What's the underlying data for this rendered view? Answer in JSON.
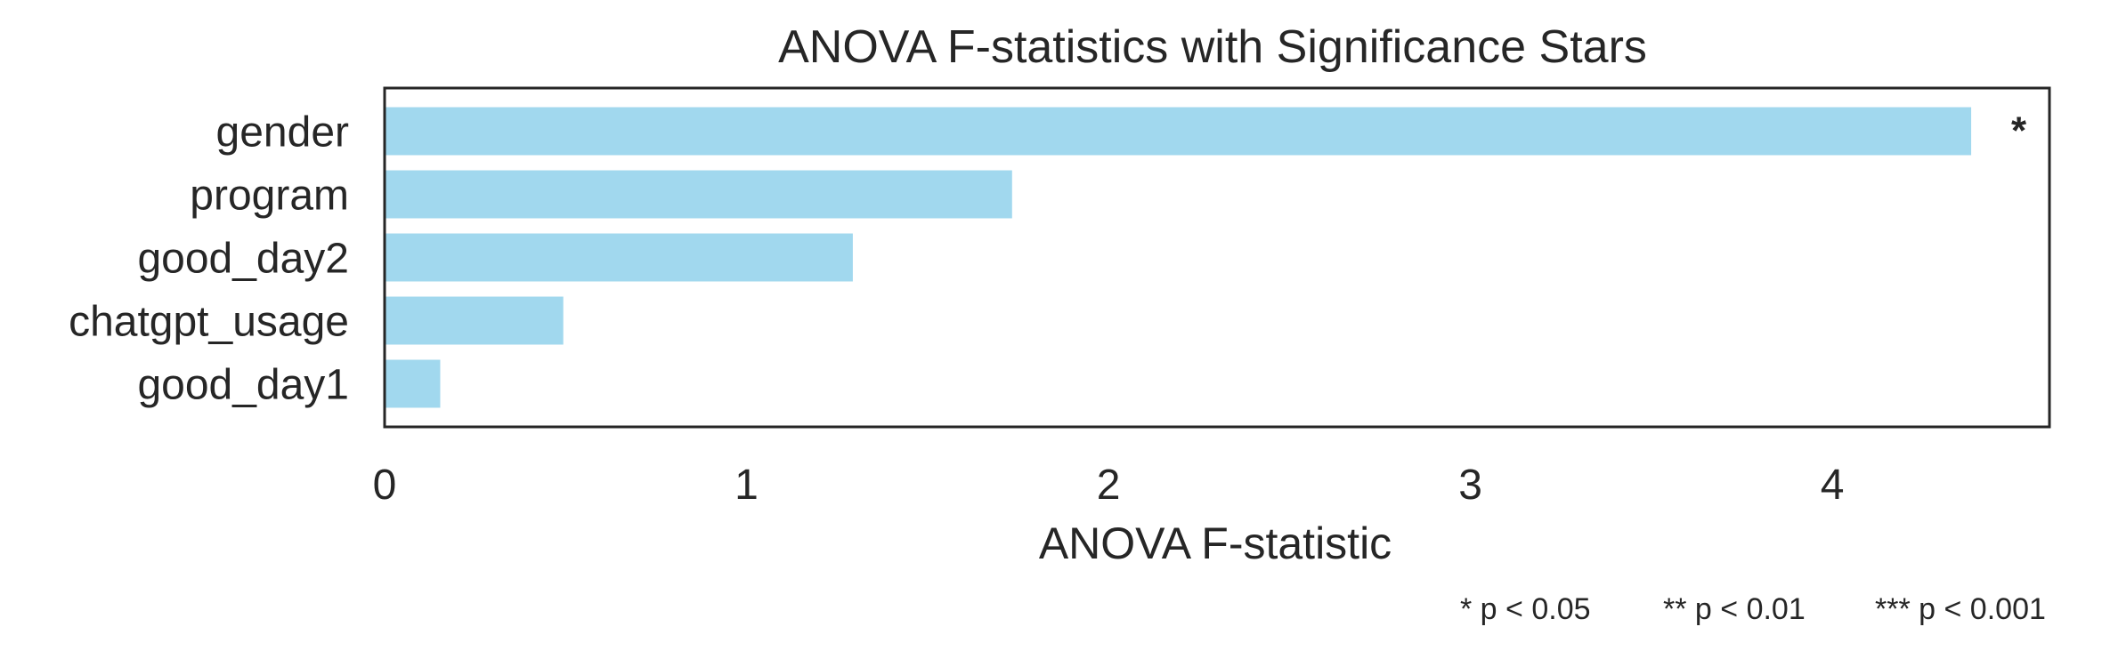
{
  "chart_data": {
    "type": "bar",
    "orientation": "horizontal",
    "title": "ANOVA F-statistics with Significance Stars",
    "xlabel": "ANOVA F-statistic",
    "ylabel": "",
    "categories": [
      "gender",
      "program",
      "good_day2",
      "chatgpt_usage",
      "good_day1"
    ],
    "values": [
      4.38,
      1.73,
      1.29,
      0.49,
      0.15
    ],
    "significance": [
      "*",
      "",
      "",
      "",
      ""
    ],
    "xlim": [
      0,
      4.6
    ],
    "xticks": [
      0,
      1,
      2,
      3,
      4
    ],
    "xtick_labels": [
      "0",
      "1",
      "2",
      "3",
      "4"
    ],
    "grid": false,
    "bar_color": "#a1d8ee",
    "footnotes": [
      "* p < 0.05",
      "** p < 0.01",
      "*** p < 0.001"
    ]
  }
}
